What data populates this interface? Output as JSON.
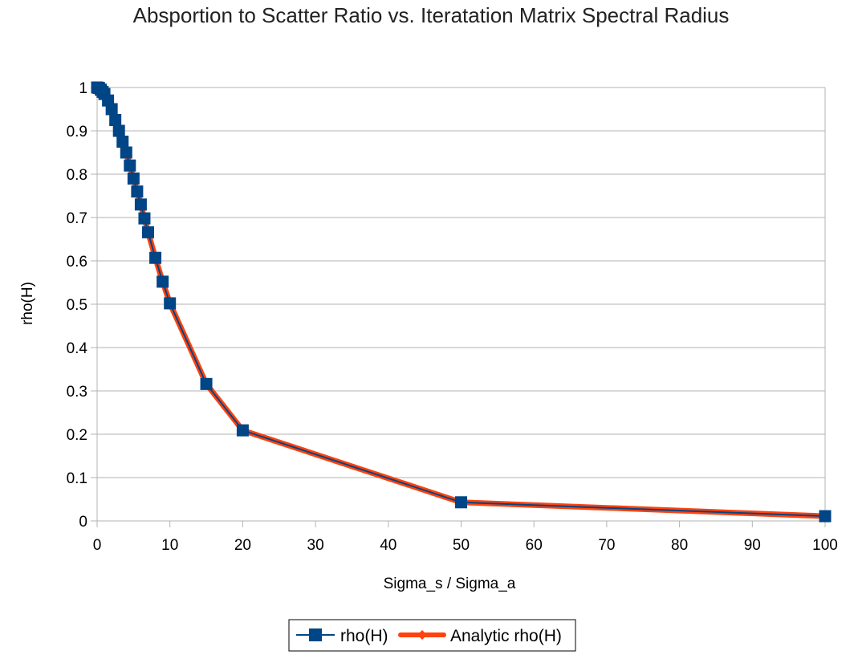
{
  "chart_data": {
    "type": "line",
    "title": "Absportion to Scatter Ratio vs. Iteratation Matrix Spectral Radius",
    "xlabel": "Sigma_s / Sigma_a",
    "ylabel": "rho(H)",
    "xlim": [
      0,
      100
    ],
    "ylim": [
      0,
      1
    ],
    "xticks": [
      "0",
      "10",
      "20",
      "30",
      "40",
      "50",
      "60",
      "70",
      "80",
      "90",
      "100"
    ],
    "yticks": [
      "0",
      "0.1",
      "0.2",
      "0.3",
      "0.4",
      "0.5",
      "0.6",
      "0.7",
      "0.8",
      "0.9",
      "1"
    ],
    "grid": "horizontal",
    "legend": "bottom",
    "series": [
      {
        "name": "rho(H)",
        "color": "#004586",
        "marker": "square",
        "x": [
          0,
          0.25,
          0.5,
          0.75,
          1,
          1.5,
          2,
          2.5,
          3,
          3.5,
          4,
          4.5,
          5,
          5.5,
          6,
          6.5,
          7,
          8,
          9,
          10,
          15,
          20,
          50,
          100
        ],
        "y": [
          1.0,
          0.999,
          0.995,
          0.99,
          0.985,
          0.97,
          0.95,
          0.925,
          0.9,
          0.875,
          0.85,
          0.82,
          0.79,
          0.76,
          0.73,
          0.698,
          0.666,
          0.607,
          0.552,
          0.502,
          0.316,
          0.209,
          0.043,
          0.011
        ]
      },
      {
        "name": "Analytic rho(H)",
        "color": "#ff420e",
        "marker": "diamond",
        "x": [
          0,
          0.25,
          0.5,
          0.75,
          1,
          1.5,
          2,
          2.5,
          3,
          3.5,
          4,
          4.5,
          5,
          5.5,
          6,
          6.5,
          7,
          8,
          9,
          10,
          15,
          20,
          50,
          100
        ],
        "y": [
          1.0,
          0.999,
          0.995,
          0.99,
          0.985,
          0.97,
          0.95,
          0.925,
          0.9,
          0.875,
          0.85,
          0.82,
          0.79,
          0.76,
          0.73,
          0.698,
          0.666,
          0.607,
          0.552,
          0.502,
          0.316,
          0.209,
          0.043,
          0.011
        ]
      }
    ]
  }
}
